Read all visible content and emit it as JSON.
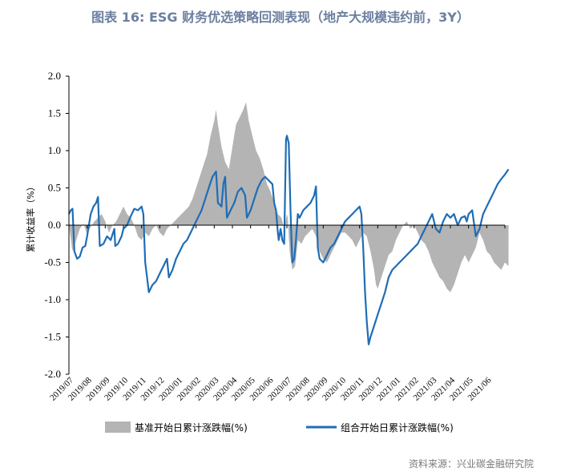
{
  "title": "图表 16: ESG 财务优选策略回测表现（地产大规模违约前，3Y）",
  "source": "资料来源：兴业碳金融研究院",
  "colors": {
    "benchmark": "#b4b4b4",
    "portfolio": "#1f6db5",
    "axis": "#000000"
  },
  "chart_data": {
    "type": "line",
    "ylabel": "累计收益率（%）",
    "ylim": [
      -2.0,
      2.0
    ],
    "y_ticks": [
      "2.0",
      "1.5",
      "1.0",
      "0.5",
      "0.0",
      "-0.5",
      "-1.0",
      "-1.5",
      "-2.0"
    ],
    "x_ticks": [
      "2019/07",
      "2019/08",
      "2019/09",
      "2019/10",
      "2019/11",
      "2019/12",
      "2020/01",
      "2020/02",
      "2020/03",
      "2020/04",
      "2020/05",
      "2020/06",
      "2020/07",
      "2020/08",
      "2020/09",
      "2020/10",
      "2020/11",
      "2020/12",
      "2021/01",
      "2021/02",
      "2021/03",
      "2021/04",
      "2021/05",
      "2021/06"
    ],
    "grid": false,
    "legend_position": "bottom",
    "series": [
      {
        "name": "基准开始日累计涨跌幅(%)",
        "type": "area",
        "points": [
          [
            0.0,
            0.0
          ],
          [
            0.2,
            -0.35
          ],
          [
            0.4,
            -0.2
          ],
          [
            0.6,
            -0.05
          ],
          [
            0.8,
            0.02
          ],
          [
            1.0,
            -0.12
          ],
          [
            1.2,
            -0.02
          ],
          [
            1.4,
            0.05
          ],
          [
            1.6,
            0.1
          ],
          [
            1.8,
            0.15
          ],
          [
            2.0,
            0.05
          ],
          [
            2.2,
            -0.1
          ],
          [
            2.4,
            0.0
          ],
          [
            2.6,
            0.05
          ],
          [
            2.8,
            0.15
          ],
          [
            3.0,
            0.25
          ],
          [
            3.2,
            0.15
          ],
          [
            3.4,
            0.1
          ],
          [
            3.6,
            0.0
          ],
          [
            3.8,
            -0.15
          ],
          [
            4.0,
            -0.2
          ],
          [
            4.2,
            -0.1
          ],
          [
            4.4,
            -0.15
          ],
          [
            4.6,
            -0.05
          ],
          [
            4.8,
            0.0
          ],
          [
            5.0,
            -0.1
          ],
          [
            5.2,
            -0.15
          ],
          [
            5.4,
            -0.05
          ],
          [
            5.6,
            0.0
          ],
          [
            5.8,
            0.05
          ],
          [
            6.0,
            0.1
          ],
          [
            6.2,
            0.15
          ],
          [
            6.4,
            0.2
          ],
          [
            6.6,
            0.25
          ],
          [
            6.8,
            0.35
          ],
          [
            7.0,
            0.5
          ],
          [
            7.2,
            0.65
          ],
          [
            7.4,
            0.8
          ],
          [
            7.6,
            0.95
          ],
          [
            7.8,
            1.2
          ],
          [
            8.0,
            1.4
          ],
          [
            8.1,
            1.55
          ],
          [
            8.2,
            1.35
          ],
          [
            8.4,
            1.05
          ],
          [
            8.6,
            0.85
          ],
          [
            8.8,
            0.75
          ],
          [
            9.0,
            1.05
          ],
          [
            9.2,
            1.35
          ],
          [
            9.4,
            1.45
          ],
          [
            9.6,
            1.55
          ],
          [
            9.75,
            1.65
          ],
          [
            9.9,
            1.4
          ],
          [
            10.1,
            1.2
          ],
          [
            10.3,
            1.0
          ],
          [
            10.5,
            0.9
          ],
          [
            10.7,
            0.75
          ],
          [
            10.9,
            0.55
          ],
          [
            11.1,
            0.45
          ],
          [
            11.3,
            0.3
          ],
          [
            11.5,
            0.15
          ],
          [
            11.7,
            0.1
          ],
          [
            11.85,
            -0.05
          ],
          [
            12.0,
            0.15
          ],
          [
            12.05,
            0.1
          ],
          [
            12.15,
            -0.35
          ],
          [
            12.3,
            -0.6
          ],
          [
            12.45,
            -0.55
          ],
          [
            12.6,
            -0.2
          ],
          [
            12.8,
            -0.25
          ],
          [
            13.0,
            -0.15
          ],
          [
            13.2,
            -0.1
          ],
          [
            13.4,
            -0.05
          ],
          [
            13.6,
            -0.15
          ],
          [
            13.8,
            -0.35
          ],
          [
            14.0,
            -0.45
          ],
          [
            14.2,
            -0.5
          ],
          [
            14.4,
            -0.4
          ],
          [
            14.6,
            -0.3
          ],
          [
            14.8,
            -0.2
          ],
          [
            15.0,
            -0.1
          ],
          [
            15.2,
            -0.1
          ],
          [
            15.4,
            -0.15
          ],
          [
            15.6,
            -0.2
          ],
          [
            15.8,
            -0.3
          ],
          [
            16.0,
            -0.2
          ],
          [
            16.2,
            -0.1
          ],
          [
            16.4,
            -0.15
          ],
          [
            16.6,
            -0.35
          ],
          [
            16.8,
            -0.6
          ],
          [
            16.9,
            -0.8
          ],
          [
            17.0,
            -0.85
          ],
          [
            17.2,
            -0.7
          ],
          [
            17.4,
            -0.55
          ],
          [
            17.6,
            -0.4
          ],
          [
            17.8,
            -0.35
          ],
          [
            18.0,
            -0.2
          ],
          [
            18.2,
            -0.1
          ],
          [
            18.4,
            0.0
          ],
          [
            18.6,
            0.05
          ],
          [
            18.8,
            -0.05
          ],
          [
            19.0,
            0.0
          ],
          [
            19.2,
            -0.1
          ],
          [
            19.4,
            -0.2
          ],
          [
            19.6,
            -0.25
          ],
          [
            19.8,
            -0.35
          ],
          [
            20.0,
            -0.5
          ],
          [
            20.2,
            -0.6
          ],
          [
            20.4,
            -0.7
          ],
          [
            20.6,
            -0.75
          ],
          [
            20.8,
            -0.85
          ],
          [
            21.0,
            -0.9
          ],
          [
            21.2,
            -0.8
          ],
          [
            21.4,
            -0.65
          ],
          [
            21.6,
            -0.5
          ],
          [
            21.8,
            -0.4
          ],
          [
            22.0,
            -0.5
          ],
          [
            22.2,
            -0.4
          ],
          [
            22.4,
            -0.3
          ],
          [
            22.6,
            -0.1
          ],
          [
            22.8,
            -0.2
          ],
          [
            23.0,
            -0.35
          ],
          [
            23.2,
            -0.4
          ],
          [
            23.4,
            -0.5
          ],
          [
            23.6,
            -0.55
          ],
          [
            23.8,
            -0.6
          ],
          [
            24.0,
            -0.5
          ],
          [
            24.2,
            -0.55
          ]
        ]
      },
      {
        "name": "组合开始日累计涨跌幅(%)",
        "type": "line",
        "points": [
          [
            0.0,
            0.15
          ],
          [
            0.1,
            0.2
          ],
          [
            0.2,
            0.22
          ],
          [
            0.3,
            -0.35
          ],
          [
            0.45,
            -0.45
          ],
          [
            0.6,
            -0.42
          ],
          [
            0.75,
            -0.3
          ],
          [
            0.9,
            -0.28
          ],
          [
            1.0,
            -0.15
          ],
          [
            1.1,
            0.0
          ],
          [
            1.2,
            0.15
          ],
          [
            1.35,
            0.25
          ],
          [
            1.5,
            0.3
          ],
          [
            1.6,
            0.38
          ],
          [
            1.7,
            -0.28
          ],
          [
            1.9,
            -0.25
          ],
          [
            2.1,
            -0.15
          ],
          [
            2.3,
            -0.2
          ],
          [
            2.5,
            -0.05
          ],
          [
            2.55,
            -0.28
          ],
          [
            2.7,
            -0.25
          ],
          [
            2.9,
            -0.15
          ],
          [
            3.0,
            -0.05
          ],
          [
            3.2,
            0.0
          ],
          [
            3.4,
            0.12
          ],
          [
            3.6,
            0.22
          ],
          [
            3.8,
            0.2
          ],
          [
            4.0,
            0.25
          ],
          [
            4.1,
            0.15
          ],
          [
            4.2,
            -0.5
          ],
          [
            4.3,
            -0.7
          ],
          [
            4.4,
            -0.9
          ],
          [
            4.6,
            -0.8
          ],
          [
            4.8,
            -0.75
          ],
          [
            5.0,
            -0.65
          ],
          [
            5.2,
            -0.55
          ],
          [
            5.4,
            -0.45
          ],
          [
            5.5,
            -0.7
          ],
          [
            5.7,
            -0.6
          ],
          [
            5.9,
            -0.45
          ],
          [
            6.1,
            -0.35
          ],
          [
            6.3,
            -0.25
          ],
          [
            6.5,
            -0.2
          ],
          [
            6.7,
            -0.1
          ],
          [
            6.9,
            0.0
          ],
          [
            7.1,
            0.1
          ],
          [
            7.3,
            0.2
          ],
          [
            7.5,
            0.35
          ],
          [
            7.7,
            0.5
          ],
          [
            7.9,
            0.65
          ],
          [
            8.1,
            0.72
          ],
          [
            8.2,
            0.3
          ],
          [
            8.4,
            0.25
          ],
          [
            8.5,
            0.55
          ],
          [
            8.6,
            0.65
          ],
          [
            8.7,
            0.1
          ],
          [
            8.9,
            0.2
          ],
          [
            9.1,
            0.3
          ],
          [
            9.3,
            0.45
          ],
          [
            9.5,
            0.5
          ],
          [
            9.7,
            0.4
          ],
          [
            9.8,
            0.1
          ],
          [
            10.0,
            0.2
          ],
          [
            10.2,
            0.35
          ],
          [
            10.4,
            0.5
          ],
          [
            10.6,
            0.6
          ],
          [
            10.8,
            0.65
          ],
          [
            11.0,
            0.6
          ],
          [
            11.2,
            0.55
          ],
          [
            11.3,
            0.3
          ],
          [
            11.4,
            0.2
          ],
          [
            11.5,
            -0.1
          ],
          [
            11.55,
            -0.2
          ],
          [
            11.65,
            -0.05
          ],
          [
            11.75,
            -0.2
          ],
          [
            11.85,
            -0.25
          ],
          [
            11.95,
            1.15
          ],
          [
            12.0,
            1.2
          ],
          [
            12.1,
            1.1
          ],
          [
            12.2,
            0.2
          ],
          [
            12.25,
            -0.2
          ],
          [
            12.3,
            -0.5
          ],
          [
            12.4,
            -0.45
          ],
          [
            12.5,
            -0.2
          ],
          [
            12.6,
            0.15
          ],
          [
            12.7,
            0.1
          ],
          [
            12.9,
            0.2
          ],
          [
            13.1,
            0.25
          ],
          [
            13.3,
            0.3
          ],
          [
            13.5,
            0.4
          ],
          [
            13.6,
            0.52
          ],
          [
            13.7,
            -0.3
          ],
          [
            13.8,
            -0.45
          ],
          [
            14.0,
            -0.5
          ],
          [
            14.2,
            -0.4
          ],
          [
            14.4,
            -0.3
          ],
          [
            14.6,
            -0.25
          ],
          [
            14.8,
            -0.15
          ],
          [
            15.0,
            -0.05
          ],
          [
            15.2,
            0.05
          ],
          [
            15.4,
            0.1
          ],
          [
            15.6,
            0.15
          ],
          [
            15.8,
            0.2
          ],
          [
            16.0,
            0.25
          ],
          [
            16.1,
            0.15
          ],
          [
            16.2,
            -0.3
          ],
          [
            16.3,
            -0.9
          ],
          [
            16.4,
            -1.3
          ],
          [
            16.5,
            -1.6
          ],
          [
            16.6,
            -1.5
          ],
          [
            16.8,
            -1.35
          ],
          [
            17.0,
            -1.2
          ],
          [
            17.2,
            -1.05
          ],
          [
            17.4,
            -0.9
          ],
          [
            17.6,
            -0.7
          ],
          [
            17.8,
            -0.6
          ],
          [
            18.0,
            -0.55
          ],
          [
            18.2,
            -0.5
          ],
          [
            18.4,
            -0.45
          ],
          [
            18.6,
            -0.4
          ],
          [
            18.8,
            -0.35
          ],
          [
            19.0,
            -0.3
          ],
          [
            19.2,
            -0.25
          ],
          [
            19.4,
            -0.15
          ],
          [
            19.6,
            -0.05
          ],
          [
            19.8,
            0.05
          ],
          [
            20.0,
            0.15
          ],
          [
            20.2,
            -0.05
          ],
          [
            20.4,
            -0.1
          ],
          [
            20.6,
            0.05
          ],
          [
            20.8,
            0.15
          ],
          [
            21.0,
            0.1
          ],
          [
            21.2,
            0.15
          ],
          [
            21.4,
            0.0
          ],
          [
            21.6,
            0.1
          ],
          [
            21.8,
            0.12
          ],
          [
            21.9,
            0.05
          ],
          [
            22.0,
            0.15
          ],
          [
            22.2,
            0.2
          ],
          [
            22.4,
            -0.15
          ],
          [
            22.6,
            -0.05
          ],
          [
            22.8,
            0.15
          ],
          [
            23.0,
            0.25
          ],
          [
            23.2,
            0.35
          ],
          [
            23.4,
            0.45
          ],
          [
            23.6,
            0.55
          ],
          [
            23.8,
            0.62
          ],
          [
            24.0,
            0.68
          ],
          [
            24.2,
            0.75
          ]
        ]
      }
    ]
  }
}
